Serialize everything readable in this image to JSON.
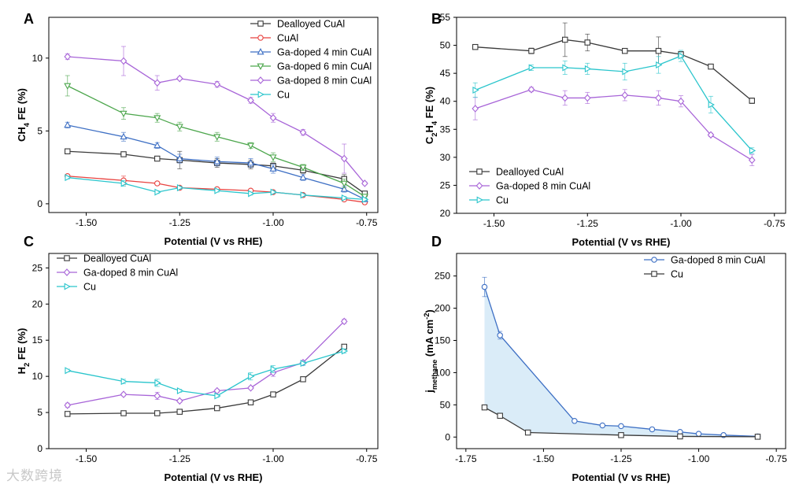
{
  "watermark": "大数跨境",
  "chart_data": [
    {
      "panel": "A",
      "type": "line",
      "xlabel": "Potential (V vs RHE)",
      "ylabel": "CH4 FE (%)",
      "ylabel_parts": {
        "main": "CH",
        "sub": "4",
        "rest": " FE (%)"
      },
      "xlim": [
        -1.6,
        -0.72
      ],
      "ylim": [
        -0.6,
        12.8
      ],
      "xticks": [
        -1.5,
        -1.25,
        -1.0,
        -0.75
      ],
      "xtick_labels": [
        "-1.50",
        "-1.25",
        "-1.00",
        "-0.75"
      ],
      "yticks": [
        0,
        5,
        10
      ],
      "ytick_labels": [
        "0",
        "5",
        "10"
      ],
      "legend_position": "top-right",
      "series": [
        {
          "name": "Dealloyed CuAl",
          "color": "#3a3a3a",
          "marker": "square",
          "x": [
            -1.55,
            -1.4,
            -1.31,
            -1.25,
            -1.15,
            -1.06,
            -1.0,
            -0.92,
            -0.81,
            -0.755
          ],
          "y": [
            3.6,
            3.4,
            3.1,
            3.0,
            2.8,
            2.7,
            2.6,
            2.3,
            1.7,
            0.7
          ],
          "err": [
            0.1,
            0.1,
            0.1,
            0.6,
            0.3,
            0.3,
            0.2,
            0.2,
            0.3,
            0.1
          ]
        },
        {
          "name": "CuAl",
          "color": "#e8423f",
          "marker": "circle",
          "x": [
            -1.55,
            -1.4,
            -1.31,
            -1.25,
            -1.15,
            -1.06,
            -1.0,
            -0.92,
            -0.81,
            -0.755
          ],
          "y": [
            1.9,
            1.6,
            1.4,
            1.1,
            1.0,
            0.9,
            0.8,
            0.6,
            0.3,
            0.1
          ],
          "err": [
            0.1,
            0.3,
            0.1,
            0.1,
            0.1,
            0.1,
            0.1,
            0.1,
            0.1,
            0.1
          ]
        },
        {
          "name": "Ga-doped 4 min CuAl",
          "color": "#3d6fc4",
          "marker": "triangle-up",
          "x": [
            -1.55,
            -1.4,
            -1.31,
            -1.25,
            -1.15,
            -1.06,
            -1.0,
            -0.92,
            -0.81,
            -0.755
          ],
          "y": [
            5.4,
            4.6,
            4.0,
            3.1,
            2.9,
            2.8,
            2.4,
            1.8,
            1.0,
            0.3
          ],
          "err": [
            0.2,
            0.3,
            0.2,
            0.3,
            0.3,
            0.3,
            0.3,
            0.2,
            0.2,
            0.1
          ]
        },
        {
          "name": "Ga-doped 6 min CuAl",
          "color": "#4ca64c",
          "marker": "triangle-down",
          "x": [
            -1.55,
            -1.4,
            -1.31,
            -1.25,
            -1.15,
            -1.06,
            -1.0,
            -0.92,
            -0.81,
            -0.755
          ],
          "y": [
            8.1,
            6.2,
            5.9,
            5.3,
            4.6,
            4.0,
            3.2,
            2.5,
            1.4,
            0.5
          ],
          "err": [
            0.7,
            0.4,
            0.3,
            0.3,
            0.3,
            0.2,
            0.3,
            0.2,
            0.3,
            0.1
          ]
        },
        {
          "name": "Ga-doped 8 min CuAl",
          "color": "#a865d8",
          "marker": "diamond",
          "x": [
            -1.55,
            -1.4,
            -1.31,
            -1.25,
            -1.15,
            -1.06,
            -1.0,
            -0.92,
            -0.81,
            -0.755
          ],
          "y": [
            10.1,
            9.8,
            8.3,
            8.6,
            8.2,
            7.1,
            5.9,
            4.9,
            3.1,
            1.4
          ],
          "err": [
            0.2,
            1.0,
            0.5,
            0.1,
            0.2,
            0.2,
            0.3,
            0.2,
            1.0,
            0.1
          ]
        },
        {
          "name": "Cu",
          "color": "#2ac5cc",
          "marker": "triangle-right",
          "x": [
            -1.55,
            -1.4,
            -1.31,
            -1.25,
            -1.15,
            -1.06,
            -1.0,
            -0.92,
            -0.81,
            -0.755
          ],
          "y": [
            1.8,
            1.4,
            0.8,
            1.1,
            0.9,
            0.7,
            0.8,
            0.6,
            0.4,
            0.3
          ],
          "err": [
            0.1,
            0.2,
            0.1,
            0.1,
            0.1,
            0.1,
            0.1,
            0.1,
            0.1,
            0.1
          ]
        }
      ]
    },
    {
      "panel": "B",
      "type": "line",
      "xlabel": "Potential (V vs RHE)",
      "ylabel": "C2H4 FE (%)",
      "ylabel_parts": {
        "main": "C",
        "sub": "2",
        "mid": "H",
        "sub2": "4",
        "rest": " FE (%)"
      },
      "xlim": [
        -1.6,
        -0.72
      ],
      "ylim": [
        20,
        55
      ],
      "xticks": [
        -1.5,
        -1.25,
        -1.0,
        -0.75
      ],
      "xtick_labels": [
        "-1.50",
        "-1.25",
        "-1.00",
        "-0.75"
      ],
      "yticks": [
        20,
        25,
        30,
        35,
        40,
        45,
        50,
        55
      ],
      "ytick_labels": [
        "20",
        "25",
        "30",
        "35",
        "40",
        "45",
        "50",
        "55"
      ],
      "legend_position": "bottom-left",
      "series": [
        {
          "name": "Dealloyed CuAl",
          "color": "#3a3a3a",
          "marker": "square",
          "x": [
            -1.55,
            -1.4,
            -1.31,
            -1.25,
            -1.15,
            -1.06,
            -1.0,
            -0.92,
            -0.81
          ],
          "y": [
            49.7,
            49.0,
            51.0,
            50.5,
            49.0,
            49.0,
            48.4,
            46.2,
            40.1
          ],
          "err": [
            0.2,
            0.5,
            3.0,
            1.5,
            0.3,
            2.5,
            0.5,
            0.3,
            0.5
          ]
        },
        {
          "name": "Ga-doped 8 min CuAl",
          "color": "#a865d8",
          "marker": "diamond",
          "x": [
            -1.55,
            -1.4,
            -1.31,
            -1.25,
            -1.15,
            -1.06,
            -1.0,
            -0.92,
            -0.81
          ],
          "y": [
            38.7,
            42.1,
            40.6,
            40.6,
            41.1,
            40.6,
            40.0,
            34.0,
            29.5
          ],
          "err": [
            2.0,
            0.4,
            1.3,
            1.0,
            1.0,
            1.3,
            1.0,
            0.3,
            1.0
          ]
        },
        {
          "name": "Cu",
          "color": "#2ac5cc",
          "marker": "triangle-right",
          "x": [
            -1.55,
            -1.4,
            -1.31,
            -1.25,
            -1.15,
            -1.06,
            -1.0,
            -0.92,
            -0.81
          ],
          "y": [
            42.0,
            46.0,
            46.0,
            45.8,
            45.3,
            46.5,
            48.1,
            39.4,
            31.2
          ],
          "err": [
            1.3,
            0.5,
            1.2,
            1.0,
            1.5,
            1.5,
            1.0,
            1.5,
            0.5
          ]
        }
      ]
    },
    {
      "panel": "C",
      "type": "line",
      "xlabel": "Potential (V vs RHE)",
      "ylabel": "H2 FE (%)",
      "ylabel_parts": {
        "main": "H",
        "sub": "2",
        "rest": " FE (%)"
      },
      "xlim": [
        -1.6,
        -0.72
      ],
      "ylim": [
        0,
        27
      ],
      "xticks": [
        -1.5,
        -1.25,
        -1.0,
        -0.75
      ],
      "xtick_labels": [
        "-1.50",
        "-1.25",
        "-1.00",
        "-0.75"
      ],
      "yticks": [
        0,
        5,
        10,
        15,
        20,
        25
      ],
      "ytick_labels": [
        "0",
        "5",
        "10",
        "15",
        "20",
        "25"
      ],
      "legend_position": "top-left",
      "series": [
        {
          "name": "Dealloyed CuAl",
          "color": "#3a3a3a",
          "marker": "square",
          "x": [
            -1.55,
            -1.4,
            -1.31,
            -1.25,
            -1.15,
            -1.06,
            -1.0,
            -0.92,
            -0.81
          ],
          "y": [
            4.8,
            4.9,
            4.9,
            5.1,
            5.6,
            6.4,
            7.5,
            9.6,
            14.1
          ],
          "err": [
            0.1,
            0.1,
            0.1,
            0.1,
            0.1,
            0.1,
            0.1,
            0.1,
            0.2
          ]
        },
        {
          "name": "Ga-doped 8 min CuAl",
          "color": "#a865d8",
          "marker": "diamond",
          "x": [
            -1.55,
            -1.4,
            -1.31,
            -1.25,
            -1.15,
            -1.06,
            -1.0,
            -0.92,
            -0.81
          ],
          "y": [
            6.0,
            7.5,
            7.3,
            6.6,
            8.0,
            8.4,
            10.5,
            11.9,
            17.6
          ],
          "err": [
            0.3,
            0.2,
            0.5,
            0.2,
            0.2,
            0.2,
            0.5,
            0.3,
            0.3
          ]
        },
        {
          "name": "Cu",
          "color": "#2ac5cc",
          "marker": "triangle-right",
          "x": [
            -1.55,
            -1.4,
            -1.31,
            -1.25,
            -1.15,
            -1.06,
            -1.0,
            -0.92,
            -0.81
          ],
          "y": [
            10.8,
            9.3,
            9.1,
            8.0,
            7.3,
            10.0,
            11.0,
            11.8,
            13.5
          ],
          "err": [
            0.2,
            0.3,
            0.5,
            0.2,
            0.2,
            0.5,
            0.5,
            0.3,
            0.3
          ]
        }
      ]
    },
    {
      "panel": "D",
      "type": "area",
      "xlabel": "Potential (V vs RHE)",
      "ylabel": "j methane (mA cm-2)",
      "ylabel_parts": {
        "main": "j",
        "sub": "methane",
        "rest": " (mA cm",
        "sup": "-2",
        "end": ")"
      },
      "xlim": [
        -1.78,
        -0.72
      ],
      "ylim": [
        -18,
        285
      ],
      "xticks": [
        -1.75,
        -1.5,
        -1.25,
        -1.0,
        -0.75
      ],
      "xtick_labels": [
        "-1.75",
        "-1.50",
        "-1.25",
        "-1.00",
        "-0.75"
      ],
      "yticks": [
        0,
        50,
        100,
        150,
        200,
        250
      ],
      "ytick_labels": [
        "0",
        "50",
        "100",
        "150",
        "200",
        "250"
      ],
      "legend_position": "top-right",
      "fill_between": {
        "color": "#d6eaf7",
        "between": [
          "Ga-doped 8 min CuAl",
          "Cu"
        ]
      },
      "series": [
        {
          "name": "Ga-doped 8 min CuAl",
          "color": "#3d6fc4",
          "marker": "circle",
          "x": [
            -1.69,
            -1.64,
            -1.4,
            -1.31,
            -1.25,
            -1.15,
            -1.06,
            -1.0,
            -0.92,
            -0.81
          ],
          "y": [
            233,
            158,
            25,
            18,
            17,
            12,
            8,
            5,
            3,
            1
          ],
          "err": [
            15,
            6,
            0,
            0,
            0,
            0,
            0,
            0,
            0,
            0
          ]
        },
        {
          "name": "Cu",
          "color": "#3a3a3a",
          "marker": "square",
          "x": [
            -1.69,
            -1.64,
            -1.55,
            -1.25,
            -1.06,
            -0.81
          ],
          "y": [
            46,
            33,
            7,
            3,
            1,
            0.5
          ],
          "err": [
            0,
            0,
            0,
            0,
            0,
            0
          ]
        }
      ]
    }
  ]
}
